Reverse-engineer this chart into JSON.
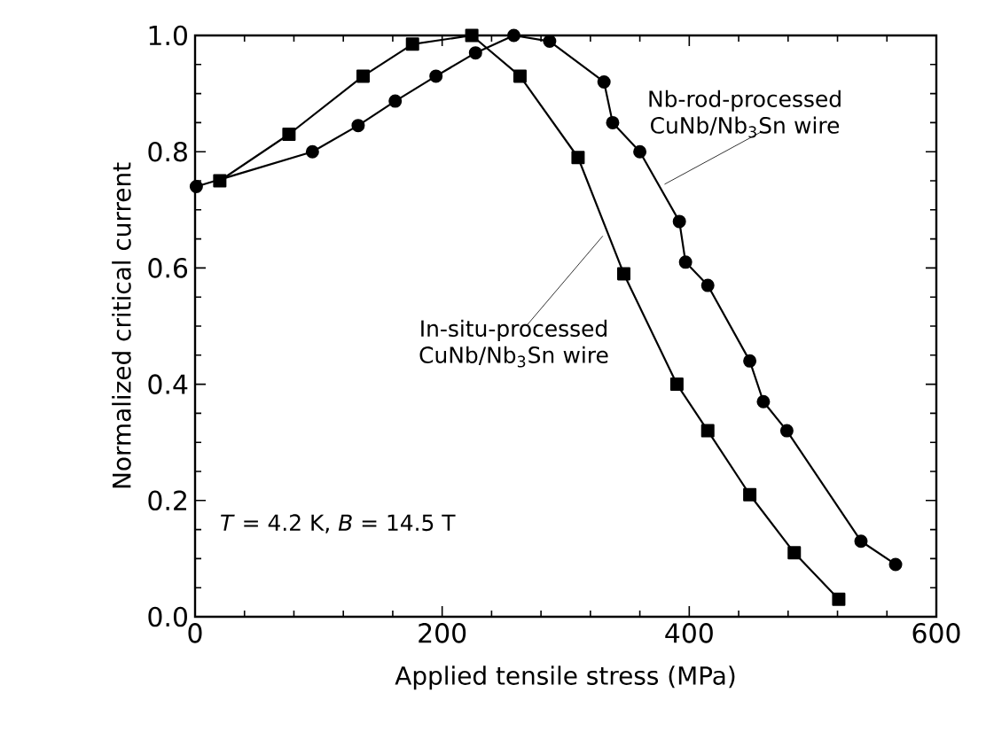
{
  "chart_data": {
    "type": "line",
    "xlabel": "Applied tensile stress (MPa)",
    "ylabel": "Normalized critical current",
    "xlim": [
      0,
      600
    ],
    "ylim": [
      0,
      1.0
    ],
    "xticks": [
      0,
      200,
      400,
      600
    ],
    "yticks": [
      {
        "value": 0,
        "label": "0.0"
      },
      {
        "value": 0.2,
        "label": "0.2"
      },
      {
        "value": 0.4,
        "label": "0.4"
      },
      {
        "value": 0.6,
        "label": "0.6"
      },
      {
        "value": 0.8,
        "label": "0.8"
      },
      {
        "value": 1.0,
        "label": "1.0"
      }
    ],
    "grid": false,
    "line_style": "solid",
    "series": [
      {
        "name": "In-situ-processed CuNb/Nb$_{3}$Sn wire",
        "color": "#000000",
        "marker": "square",
        "x": [
          20,
          76,
          136,
          176,
          224,
          263,
          310,
          347,
          390,
          415,
          449,
          485,
          521
        ],
        "values": [
          0.75,
          0.83,
          0.93,
          0.985,
          1.0,
          0.93,
          0.79,
          0.59,
          0.4,
          0.32,
          0.21,
          0.11,
          0.03
        ]
      },
      {
        "name": "Nb-rod-processed CuNb/Nb$_{3}$Sn wire",
        "color": "#000000",
        "marker": "circle",
        "x": [
          1,
          95,
          132,
          162,
          195,
          227,
          258,
          287,
          331,
          338,
          360,
          392,
          397,
          415,
          449,
          460,
          479,
          539,
          567
        ],
        "values": [
          0.74,
          0.8,
          0.845,
          0.887,
          0.93,
          0.97,
          1.0,
          0.99,
          0.92,
          0.85,
          0.8,
          0.68,
          0.61,
          0.57,
          0.44,
          0.37,
          0.32,
          0.13,
          0.09
        ]
      }
    ],
    "annotations": [
      "*T* = 4.2 K, *B* = 14.5 T"
    ]
  }
}
